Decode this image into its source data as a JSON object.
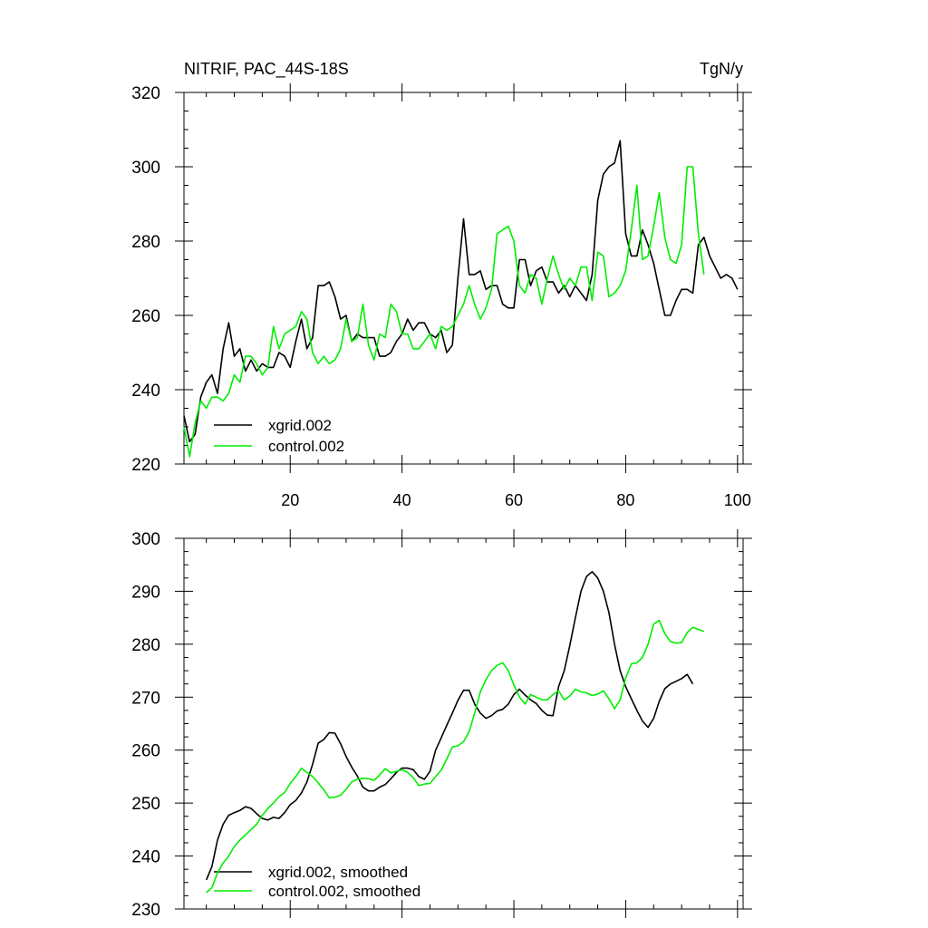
{
  "chart_data": [
    {
      "type": "line",
      "title": "NITRIF, PAC_44S-18S",
      "units": "TgN/y",
      "xlim": [
        1,
        101
      ],
      "ylim": [
        220,
        320
      ],
      "xticks": [
        20,
        40,
        60,
        80,
        100
      ],
      "yticks": [
        220,
        240,
        260,
        280,
        300,
        320
      ],
      "legend_position": "bottom-left",
      "series": [
        {
          "name": "xgrid.002",
          "color": "#000000",
          "x_start": 1,
          "values": [
            233,
            226,
            228,
            238,
            242,
            244,
            239,
            251,
            258,
            249,
            251,
            245,
            248,
            245,
            247,
            246,
            246,
            250,
            249,
            246,
            253,
            259,
            251,
            254,
            268,
            268,
            269,
            265,
            259,
            260,
            253,
            255,
            254,
            254,
            254,
            249,
            249,
            250,
            253,
            255,
            259,
            256,
            258,
            258,
            255,
            254,
            256,
            250,
            252,
            270,
            286,
            271,
            271,
            272,
            267,
            268,
            268,
            263,
            262,
            262,
            275,
            275,
            268,
            272,
            273,
            269,
            269,
            266,
            268,
            265,
            268,
            266,
            264,
            271,
            291,
            298,
            300,
            301,
            307,
            282,
            276,
            276,
            283,
            279,
            274,
            267,
            260,
            260,
            264,
            267,
            267,
            266,
            279,
            281,
            276,
            273,
            270,
            271,
            270,
            267
          ]
        },
        {
          "name": "control.002",
          "color": "#00ee00",
          "x_start": 1,
          "values": [
            230,
            222,
            231,
            237,
            235,
            238,
            238,
            237,
            239,
            244,
            242,
            249,
            249,
            247,
            244,
            246,
            257,
            251,
            255,
            256,
            257,
            261,
            259,
            250,
            247,
            249,
            247,
            248,
            251,
            259,
            253,
            254,
            263,
            252,
            248,
            255,
            254,
            263,
            261,
            255,
            255,
            251,
            251,
            253,
            255,
            251,
            257,
            256,
            257,
            260,
            263,
            268,
            263,
            259,
            262,
            267,
            282,
            283,
            284,
            280,
            268,
            266,
            271,
            270,
            263,
            270,
            276,
            271,
            267,
            270,
            268,
            273,
            273,
            264,
            277,
            276,
            265,
            266,
            268,
            272,
            283,
            295,
            275,
            276,
            284,
            293,
            281,
            275,
            274,
            279,
            300,
            300,
            282,
            271
          ]
        }
      ]
    },
    {
      "type": "line",
      "xlim": [
        1,
        101
      ],
      "ylim": [
        230,
        300
      ],
      "xticks": [
        20,
        40,
        60,
        80,
        100
      ],
      "yticks": [
        230,
        240,
        250,
        260,
        270,
        280,
        290,
        300
      ],
      "legend_position": "bottom-left",
      "series": [
        {
          "name": "xgrid.002, smoothed",
          "color": "#000000",
          "x_start": 5,
          "values": [
            235.5,
            238,
            243,
            246,
            247.7,
            248.2,
            248.6,
            249.3,
            249,
            248,
            247.1,
            246.8,
            247.3,
            247.1,
            248.2,
            249.7,
            250.5,
            251.9,
            254,
            257.3,
            261.3,
            262,
            263.3,
            263.2,
            261.2,
            258.8,
            256.8,
            255.1,
            253,
            252.3,
            252.3,
            253,
            253.5,
            254.6,
            255.8,
            256.6,
            256.6,
            256.3,
            255,
            254.5,
            256,
            260,
            262.3,
            264.7,
            267,
            269.4,
            271.3,
            271.3,
            268.7,
            267,
            266,
            266.5,
            267.4,
            267.7,
            268.7,
            270.5,
            271.5,
            270.4,
            269.5,
            268.8,
            267.5,
            266.6,
            266.5,
            272,
            275,
            279.7,
            285,
            290,
            292.8,
            293.7,
            292.5,
            290,
            286,
            280,
            275,
            272,
            269.7,
            267.5,
            265.5,
            264.3,
            266,
            269.2,
            271.6,
            272.5,
            273,
            273.5,
            274.3,
            272.5
          ]
        },
        {
          "name": "control.002, smoothed",
          "color": "#00ee00",
          "x_start": 5,
          "values": [
            233.1,
            234,
            236.8,
            238.7,
            240,
            241.8,
            243,
            244,
            245,
            246,
            247.7,
            249,
            250,
            251.2,
            252,
            253.7,
            255,
            256.6,
            255.8,
            255,
            253.8,
            252.5,
            251,
            251.1,
            251.5,
            252.6,
            254,
            254.5,
            254.7,
            254.6,
            254.3,
            255.3,
            256.5,
            255.7,
            256,
            256.3,
            255.8,
            254.8,
            253.3,
            253.6,
            253.7,
            255,
            256.2,
            258.3,
            260.6,
            260.8,
            261.6,
            263.5,
            267,
            271,
            273.3,
            275,
            276,
            276.5,
            275,
            272.3,
            270,
            268.7,
            270.5,
            270,
            269.5,
            269.5,
            270.5,
            271.2,
            269.5,
            270.2,
            271.5,
            271,
            270.8,
            270.3,
            270.6,
            271.2,
            269.7,
            267.8,
            269.5,
            273.6,
            276.3,
            276.5,
            277.5,
            280,
            283.8,
            284.5,
            282,
            280.5,
            280.2,
            280.3,
            282.2,
            283.2,
            282.8,
            282.4
          ]
        }
      ]
    }
  ]
}
